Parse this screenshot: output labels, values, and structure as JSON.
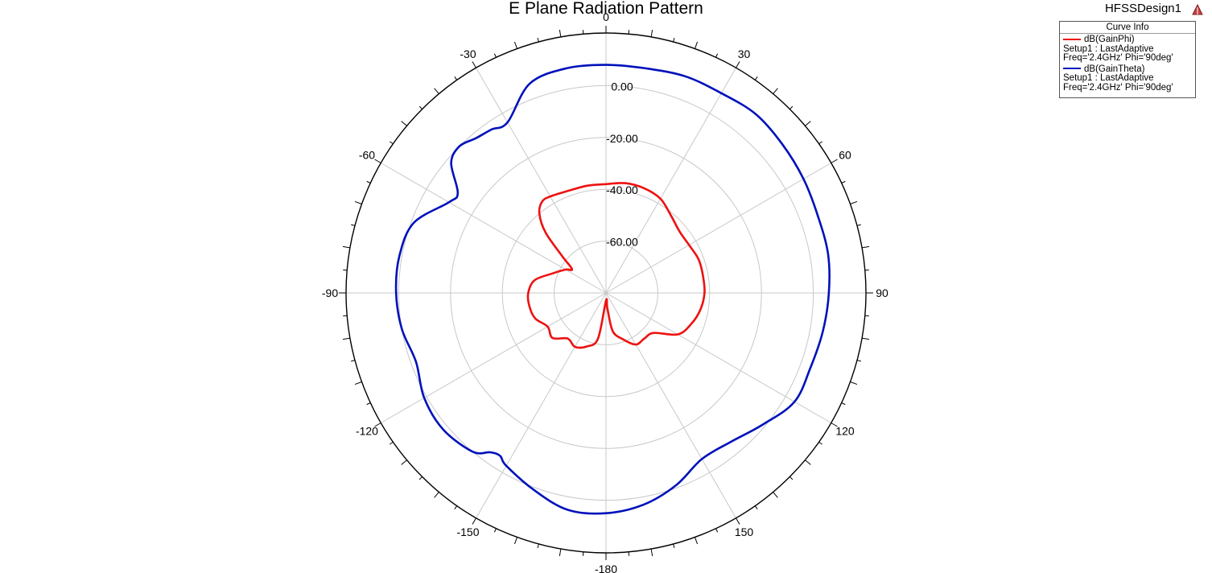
{
  "header": {
    "title": "E Plane Radiation Pattern",
    "design_name": "HFSSDesign1",
    "logo_icon": "hfss-logo-icon"
  },
  "legend": {
    "header": "Curve Info",
    "entries": [
      {
        "name": "dB(GainPhi)",
        "setup": "Setup1 : LastAdaptive",
        "freq": "Freq='2.4GHz' Phi='90deg'",
        "color": "#ee1111"
      },
      {
        "name": "dB(GainTheta)",
        "setup": "Setup1 : LastAdaptive",
        "freq": "Freq='2.4GHz' Phi='90deg'",
        "color": "#0011bb"
      }
    ]
  },
  "chart_data": {
    "type": "polar-line",
    "title": "E Plane Radiation Pattern",
    "angle_unit": "deg",
    "angle_ticks": [
      0,
      30,
      60,
      90,
      120,
      150,
      -180,
      -150,
      -120,
      -90,
      -60,
      -30
    ],
    "radial_range": [
      -80,
      20
    ],
    "radial_ticks": [
      0,
      -20,
      -40,
      -60
    ],
    "radial_tick_labels": [
      "0.00",
      "-20.00",
      "-40.00",
      "-60.00"
    ],
    "grid": true,
    "legend_position": "top-right",
    "series": [
      {
        "name": "dB(GainPhi)",
        "color": "#ee1111",
        "theta": [
          -180,
          -170,
          -160,
          -150,
          -140,
          -130,
          -120,
          -110,
          -100,
          -90,
          -80,
          -70,
          -60,
          -55,
          -50,
          -45,
          -40,
          -35,
          -30,
          -20,
          -10,
          0,
          10,
          20,
          30,
          40,
          50,
          60,
          70,
          80,
          90,
          100,
          110,
          120,
          130,
          140,
          150,
          160,
          170,
          175,
          180
        ],
        "r": [
          -77,
          -62,
          -58,
          -56,
          -57,
          -53,
          -54,
          -51,
          -50,
          -50,
          -52,
          -58,
          -62,
          -64,
          -58,
          -47,
          -40,
          -37,
          -37,
          -38,
          -38,
          -38,
          -37,
          -37,
          -38,
          -41,
          -43,
          -43,
          -42,
          -42,
          -42,
          -43,
          -45,
          -48,
          -56,
          -57,
          -57,
          -61,
          -65,
          -74,
          -77
        ]
      },
      {
        "name": "dB(GainTheta)",
        "color": "#0011bb",
        "theta": [
          -180,
          -170,
          -160,
          -150,
          -147,
          -144,
          -140,
          -130,
          -120,
          -110,
          -100,
          -90,
          -80,
          -70,
          -60,
          -56,
          -50,
          -45,
          -40,
          -35,
          -30,
          -20,
          -10,
          0,
          10,
          20,
          30,
          40,
          50,
          60,
          70,
          80,
          90,
          100,
          110,
          120,
          130,
          140,
          150,
          160,
          170,
          180
        ],
        "r": [
          5,
          5,
          1,
          -3,
          -5,
          -4,
          0,
          2,
          1,
          -2,
          0,
          1,
          1,
          -1,
          -10,
          -11,
          -2,
          0,
          -2,
          -3,
          -4,
          6,
          8,
          8,
          8,
          9,
          9,
          10,
          9,
          8,
          7,
          7,
          6,
          5,
          4,
          4,
          -1,
          -5,
          -6,
          -1,
          3,
          5
        ]
      }
    ]
  }
}
